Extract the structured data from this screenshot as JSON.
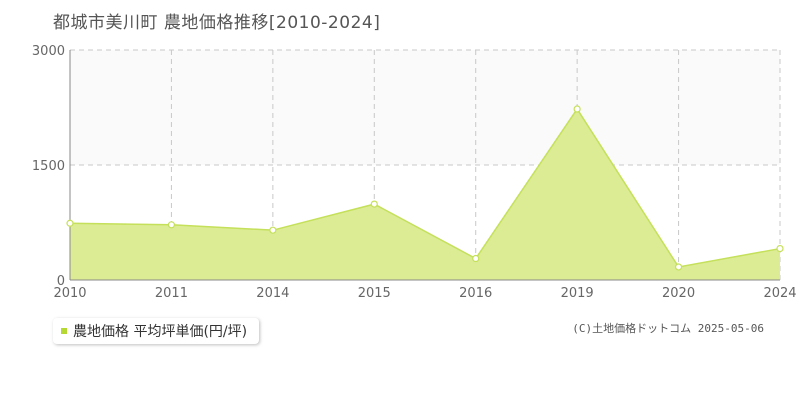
{
  "title": "都城市美川町 農地価格推移[2010-2024]",
  "legend": {
    "label": "農地価格 平均坪単価(円/坪)"
  },
  "copyright": "(C)土地価格ドットコム 2025-05-06",
  "colors": {
    "area_fill": "#dbec94",
    "line": "#c5e05a",
    "marker_fill": "#ffffff",
    "marker_stroke": "#c5e05a",
    "legend_swatch": "#b5d833",
    "upper_band": "#fafafa",
    "grid": "#c8c8c8",
    "axis": "#888888"
  },
  "chart_data": {
    "type": "area",
    "title": "都城市美川町 農地価格推移[2010-2024]",
    "categories": [
      "2010",
      "2011",
      "2014",
      "2015",
      "2016",
      "2019",
      "2020",
      "2024"
    ],
    "series": [
      {
        "name": "農地価格 平均坪単価(円/坪)",
        "values": [
          740,
          720,
          650,
          990,
          280,
          2230,
          170,
          410
        ]
      }
    ],
    "yticks": [
      "0",
      "1500",
      "3000"
    ],
    "ylim": [
      0,
      3000
    ],
    "grid": true,
    "legend_position": "bottom-left"
  }
}
